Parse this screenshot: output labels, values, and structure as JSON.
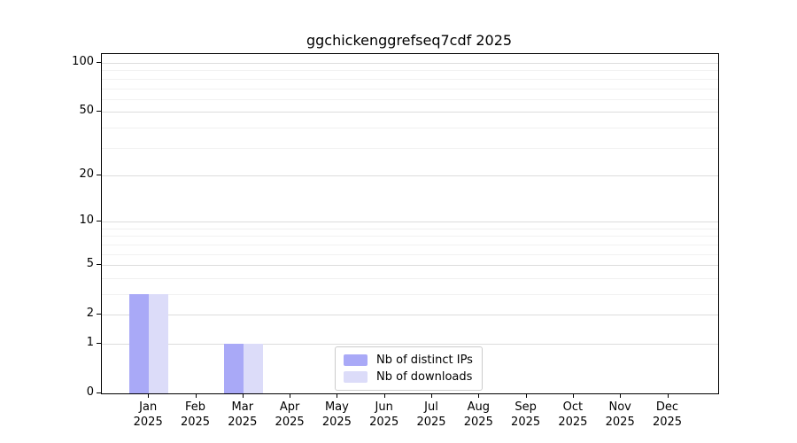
{
  "title": "ggchickenggrefseq7cdf 2025",
  "colors": {
    "distinct_ips": "#a9a9f7",
    "downloads": "#dcdcf9",
    "axis": "#000000",
    "grid_major": "#dddddd",
    "grid_minor": "#f1f1f1",
    "legend_border": "#cccccc",
    "background": "#ffffff"
  },
  "chart_data": {
    "type": "bar",
    "title": "ggchickenggrefseq7cdf 2025",
    "categories": [
      "Jan 2025",
      "Feb 2025",
      "Mar 2025",
      "Apr 2025",
      "May 2025",
      "Jun 2025",
      "Jul 2025",
      "Aug 2025",
      "Sep 2025",
      "Oct 2025",
      "Nov 2025",
      "Dec 2025"
    ],
    "series": [
      {
        "name": "Nb of distinct IPs",
        "color": "#a9a9f7",
        "values": [
          3,
          0,
          1,
          0,
          0,
          0,
          0,
          0,
          0,
          0,
          0,
          0
        ]
      },
      {
        "name": "Nb of downloads",
        "color": "#dcdcf9",
        "values": [
          3,
          0,
          1,
          0,
          0,
          0,
          0,
          0,
          0,
          0,
          0,
          0
        ]
      }
    ],
    "xlabel": "",
    "ylabel": "",
    "yscale": "log1p",
    "yticks": [
      0,
      1,
      2,
      5,
      10,
      20,
      50,
      100
    ],
    "minor_yticks": [
      3,
      4,
      6,
      7,
      8,
      9,
      30,
      40,
      60,
      70,
      80,
      90
    ],
    "ylim": [
      0,
      114
    ],
    "grid": "y-only",
    "legend_position": "lower center"
  }
}
